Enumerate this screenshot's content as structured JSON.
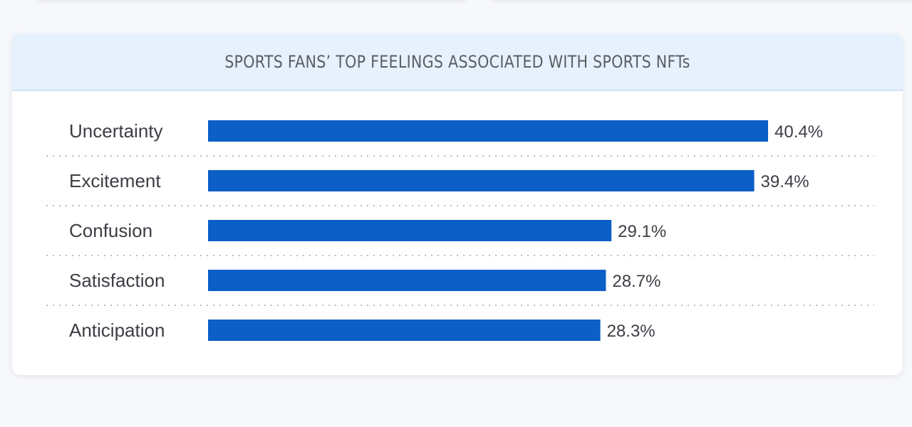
{
  "chart_data": {
    "type": "bar",
    "orientation": "horizontal",
    "title": "SPORTS FANS’ TOP FEELINGS ASSOCIATED WITH SPORTS NFTs",
    "categories": [
      "Uncertainty",
      "Excitement",
      "Confusion",
      "Satisfaction",
      "Anticipation"
    ],
    "values": [
      40.4,
      39.4,
      29.1,
      28.7,
      28.3
    ],
    "value_labels": [
      "40.4%",
      "39.4%",
      "29.1%",
      "28.7%",
      "28.3%"
    ],
    "xlim": [
      0,
      40.4
    ],
    "grid": false,
    "colors": {
      "bar": "#0b5fc6",
      "header_background": "#e6f1fd",
      "text": "#3b3e44"
    }
  }
}
